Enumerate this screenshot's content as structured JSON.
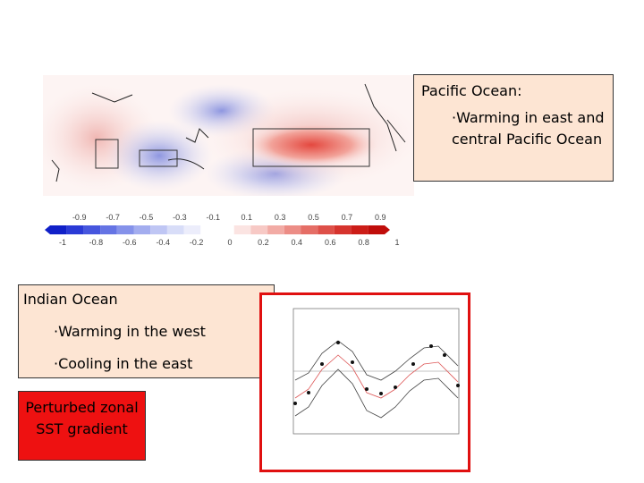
{
  "pacific": {
    "title": "Pacific Ocean:",
    "bullet": "·Warming in east and central Pacific Ocean"
  },
  "indian": {
    "title": "Indian Ocean",
    "bullets": [
      "·Warming in the west",
      "·Cooling in the east"
    ]
  },
  "callout": "Perturbed zonal SST gradient",
  "colorbar": {
    "upper_labels": [
      "-0.9",
      "-0.7",
      "-0.5",
      "-0.3",
      "-0.1",
      "0.1",
      "0.3",
      "0.5",
      "0.7",
      "0.9"
    ],
    "lower_labels": [
      "-1",
      "-0.8",
      "-0.6",
      "-0.4",
      "-0.2",
      "0",
      "0.2",
      "0.4",
      "0.6",
      "0.8",
      "1"
    ]
  }
}
